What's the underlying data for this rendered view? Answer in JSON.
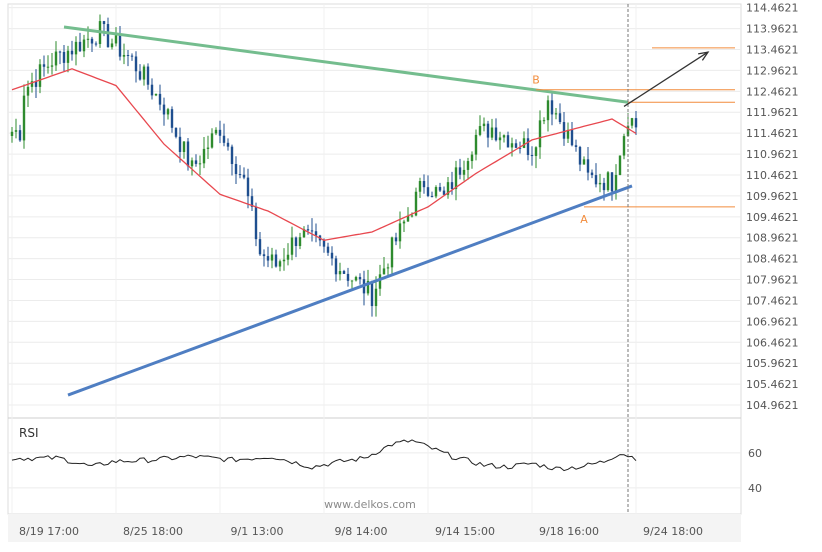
{
  "watermark": "www.delkos.com",
  "chart_data": [
    {
      "type": "candlestick",
      "title": "",
      "y_ticks": [
        104.9621,
        105.4621,
        105.9621,
        106.4621,
        106.9621,
        107.4621,
        107.9621,
        108.4621,
        108.9621,
        109.4621,
        109.9621,
        110.4621,
        110.9621,
        111.4621,
        111.9621,
        112.4621,
        112.9621,
        113.4621,
        113.9621,
        114.4621
      ],
      "y_tick_labels": [
        "104.9621",
        "105.4621",
        "105.9621",
        "106.4621",
        "106.9621",
        "107.4621",
        "107.9621",
        "108.4621",
        "108.9621",
        "109.4621",
        "109.9621",
        "110.4621",
        "110.9621",
        "111.4621",
        "111.9621",
        "112.4621",
        "112.9621",
        "113.4621",
        "113.9621",
        "114.4621"
      ],
      "ylim": [
        104.7,
        114.55
      ],
      "x_tick_labels": [
        "8/19 17:00",
        "8/25 18:00",
        "9/1 13:00",
        "9/8 14:00",
        "9/14 15:00",
        "9/18 16:00",
        "9/24 18:00"
      ],
      "bars": 157,
      "x_tick_bars": [
        0,
        26,
        52,
        78,
        104,
        130,
        156
      ],
      "anchor_bars": [
        3,
        10,
        22,
        30,
        38,
        45,
        52,
        58,
        62,
        66,
        72,
        77,
        85,
        90,
        95,
        103,
        108,
        116,
        120,
        125,
        130,
        134,
        138,
        144,
        150,
        154,
        157
      ],
      "anchor_closes": [
        112.5,
        113.2,
        113.9,
        113.2,
        112.1,
        110.6,
        111.6,
        110.3,
        108.6,
        108.3,
        109.1,
        108.7,
        108.0,
        107.6,
        108.7,
        110.3,
        109.9,
        111.4,
        111.6,
        111.3,
        111.1,
        112.3,
        111.6,
        110.4,
        110.3,
        111.9,
        111.5
      ],
      "indicator": {
        "name": "RSI",
        "ticks": [
          60,
          40
        ],
        "tick_labels": [
          "60",
          "40"
        ],
        "ylim": [
          25,
          80
        ],
        "anchor_bars": [
          0,
          12,
          20,
          25,
          35,
          45,
          55,
          65,
          75,
          82,
          88,
          95,
          100,
          110,
          118,
          124,
          130,
          136,
          142,
          148,
          152,
          156,
          157
        ],
        "anchor_values": [
          57,
          57,
          52,
          55,
          56,
          58,
          56,
          58,
          52,
          55,
          57,
          65,
          67,
          58,
          53,
          52,
          54,
          51,
          52,
          55,
          60,
          57,
          54
        ]
      },
      "moving_average_anchors": {
        "bars": [
          0,
          15,
          26,
          38,
          52,
          64,
          78,
          90,
          104,
          116,
          130,
          138,
          150,
          157
        ],
        "values": [
          112.5,
          113.0,
          112.6,
          111.2,
          110.0,
          109.6,
          108.9,
          109.1,
          109.7,
          110.5,
          111.3,
          111.5,
          111.8,
          111.4
        ]
      },
      "resistance_line": {
        "start": {
          "bar": 13,
          "value": 114.0
        },
        "end": {
          "bar": 154,
          "value": 112.2
        }
      },
      "support_line": {
        "start": {
          "bar": 14,
          "value": 105.2
        },
        "end": {
          "bar": 155,
          "value": 110.2
        }
      },
      "levels": [
        {
          "value": 113.5,
          "start_bar": 160
        },
        {
          "value": 112.5,
          "start_bar": 131
        },
        {
          "value": 112.2,
          "start_bar": 154
        },
        {
          "value": 109.7,
          "start_bar": 143
        }
      ],
      "points": [
        {
          "label": "B",
          "bar": 131,
          "value": 112.5
        },
        {
          "label": "A",
          "bar": 143,
          "value": 109.7
        }
      ],
      "projection": {
        "from": {
          "bar": 153,
          "value": 112.1
        },
        "to": {
          "bar": 174,
          "value": 113.4
        }
      },
      "current_bar": 154,
      "colors": {
        "up": "#2e8b2e",
        "down": "#1f4f8f",
        "moving_average": "#e8484f",
        "resistance": "#74bd8e",
        "support": "#4f7ec2",
        "levels": "#f28c3c",
        "projection": "#333333",
        "rsi": "#222222"
      }
    }
  ]
}
